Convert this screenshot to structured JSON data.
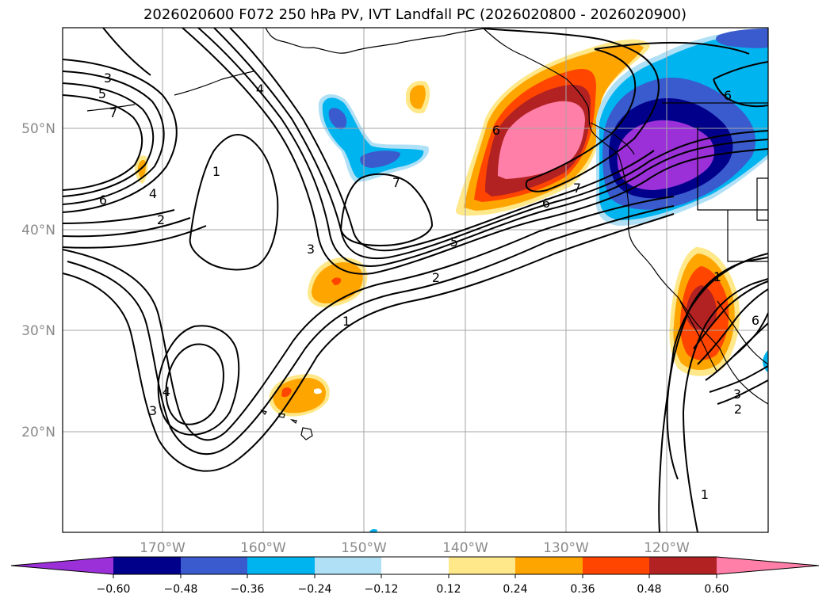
{
  "title": "2026020600 F072 250 hPa PV, IVT Landfall PC (2026020800 - 2026020900)",
  "map": {
    "lon_labels": [
      "170°W",
      "160°W",
      "150°W",
      "140°W",
      "130°W",
      "120°W"
    ],
    "lat_labels": [
      "50°N",
      "40°N",
      "30°N",
      "20°N"
    ],
    "contour_labels": [
      "3",
      "5",
      "7",
      "6",
      "4",
      "2",
      "1",
      "4",
      "3",
      "5",
      "2",
      "1",
      "7",
      "6",
      "7",
      "6",
      "6",
      "1",
      "2",
      "3",
      "6",
      "1",
      "4",
      "3"
    ]
  },
  "colorbar": {
    "tick_labels": [
      "−0.60",
      "−0.48",
      "−0.36",
      "−0.24",
      "−0.12",
      "0.12",
      "0.24",
      "0.36",
      "0.48",
      "0.60"
    ],
    "colors": {
      "neg_extreme": "#9b30d9",
      "neg_060": "#00008b",
      "neg_048": "#3a5bcd",
      "neg_036": "#00b4f0",
      "neg_024": "#b0e0f5",
      "neutral": "#ffffff",
      "pos_012": "#ffe88a",
      "pos_024": "#ffa500",
      "pos_036": "#ff4500",
      "pos_048": "#b22222",
      "pos_extreme": "#ff7fa8"
    }
  }
}
